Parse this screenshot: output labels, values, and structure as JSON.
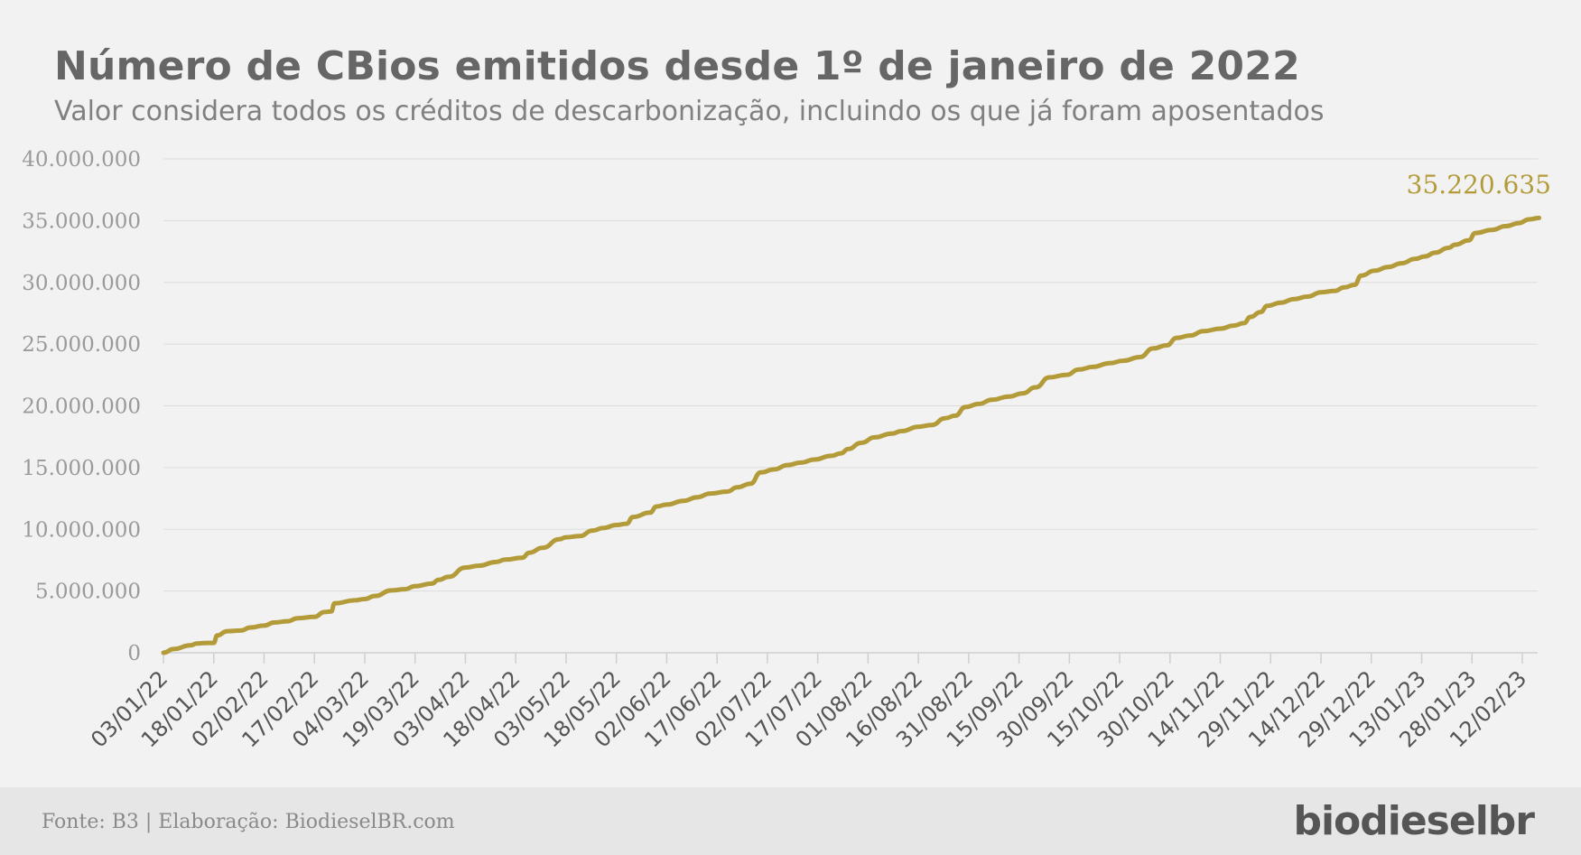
{
  "chart_data": {
    "type": "line",
    "title": "Número de CBios emitidos desde 1º de janeiro de 2022",
    "subtitle": "Valor considera todos os créditos de descarbonização, incluindo os que já foram aposentados",
    "xlabel": "",
    "ylabel": "",
    "ylim": [
      0,
      40000000
    ],
    "yticks": [
      0,
      5000000,
      10000000,
      15000000,
      20000000,
      25000000,
      30000000,
      35000000,
      40000000
    ],
    "ytick_labels": [
      "0",
      "5.000.000",
      "10.000.000",
      "15.000.000",
      "20.000.000",
      "25.000.000",
      "30.000.000",
      "35.000.000",
      "40.000.000"
    ],
    "xticks": [
      "2022-01-03",
      "2022-01-18",
      "2022-02-02",
      "2022-02-17",
      "2022-03-04",
      "2022-03-19",
      "2022-04-03",
      "2022-04-18",
      "2022-05-03",
      "2022-05-18",
      "2022-06-02",
      "2022-06-17",
      "2022-07-02",
      "2022-07-17",
      "2022-08-01",
      "2022-08-16",
      "2022-08-31",
      "2022-09-15",
      "2022-09-30",
      "2022-10-15",
      "2022-10-30",
      "2022-11-14",
      "2022-11-29",
      "2022-12-14",
      "2022-12-29",
      "2023-01-13",
      "2023-01-28",
      "2023-02-12"
    ],
    "xtick_labels": [
      "03/01/22",
      "18/01/22",
      "02/02/22",
      "17/02/22",
      "04/03/22",
      "19/03/22",
      "03/04/22",
      "18/04/22",
      "03/05/22",
      "18/05/22",
      "02/06/22",
      "17/06/22",
      "02/07/22",
      "17/07/22",
      "01/08/22",
      "16/08/22",
      "31/08/22",
      "15/09/22",
      "30/09/22",
      "15/10/22",
      "30/10/22",
      "14/11/22",
      "29/11/22",
      "14/12/22",
      "29/12/22",
      "13/01/23",
      "28/01/23",
      "12/02/23"
    ],
    "grid": true,
    "color": "#b39b3a",
    "series": [
      {
        "points": [
          [
            "2022-01-03",
            0
          ],
          [
            "2022-01-06",
            300000
          ],
          [
            "2022-01-11",
            600000
          ],
          [
            "2022-01-13",
            750000
          ],
          [
            "2022-01-16",
            800000
          ],
          [
            "2022-01-18",
            800000
          ],
          [
            "2022-01-19",
            1400000
          ],
          [
            "2022-01-22",
            1750000
          ],
          [
            "2022-01-26",
            1800000
          ],
          [
            "2022-01-29",
            2050000
          ],
          [
            "2022-02-02",
            2200000
          ],
          [
            "2022-02-05",
            2450000
          ],
          [
            "2022-02-09",
            2550000
          ],
          [
            "2022-02-12",
            2800000
          ],
          [
            "2022-02-17",
            2900000
          ],
          [
            "2022-02-20",
            3300000
          ],
          [
            "2022-02-22",
            3350000
          ],
          [
            "2022-02-23",
            4000000
          ],
          [
            "2022-03-01",
            4250000
          ],
          [
            "2022-03-04",
            4350000
          ],
          [
            "2022-03-07",
            4600000
          ],
          [
            "2022-03-12",
            5050000
          ],
          [
            "2022-03-16",
            5150000
          ],
          [
            "2022-03-19",
            5400000
          ],
          [
            "2022-03-24",
            5600000
          ],
          [
            "2022-03-26",
            5900000
          ],
          [
            "2022-03-29",
            6150000
          ],
          [
            "2022-04-03",
            6900000
          ],
          [
            "2022-04-07",
            7050000
          ],
          [
            "2022-04-12",
            7350000
          ],
          [
            "2022-04-15",
            7550000
          ],
          [
            "2022-04-20",
            7700000
          ],
          [
            "2022-04-22",
            8100000
          ],
          [
            "2022-04-26",
            8500000
          ],
          [
            "2022-05-01",
            9200000
          ],
          [
            "2022-05-03",
            9350000
          ],
          [
            "2022-05-07",
            9450000
          ],
          [
            "2022-05-11",
            9900000
          ],
          [
            "2022-05-14",
            10100000
          ],
          [
            "2022-05-18",
            10350000
          ],
          [
            "2022-05-21",
            10450000
          ],
          [
            "2022-05-23",
            11000000
          ],
          [
            "2022-05-28",
            11350000
          ],
          [
            "2022-05-30",
            11850000
          ],
          [
            "2022-06-02",
            12000000
          ],
          [
            "2022-06-07",
            12300000
          ],
          [
            "2022-06-11",
            12600000
          ],
          [
            "2022-06-15",
            12900000
          ],
          [
            "2022-06-20",
            13050000
          ],
          [
            "2022-06-23",
            13400000
          ],
          [
            "2022-06-27",
            13700000
          ],
          [
            "2022-06-30",
            14600000
          ],
          [
            "2022-07-04",
            14850000
          ],
          [
            "2022-07-08",
            15200000
          ],
          [
            "2022-07-12",
            15400000
          ],
          [
            "2022-07-16",
            15650000
          ],
          [
            "2022-07-21",
            15950000
          ],
          [
            "2022-07-24",
            16150000
          ],
          [
            "2022-07-26",
            16500000
          ],
          [
            "2022-07-30",
            17000000
          ],
          [
            "2022-08-03",
            17450000
          ],
          [
            "2022-08-08",
            17750000
          ],
          [
            "2022-08-11",
            17950000
          ],
          [
            "2022-08-16",
            18300000
          ],
          [
            "2022-08-20",
            18450000
          ],
          [
            "2022-08-24",
            19000000
          ],
          [
            "2022-08-27",
            19200000
          ],
          [
            "2022-08-30",
            19900000
          ],
          [
            "2022-09-03",
            20150000
          ],
          [
            "2022-09-07",
            20500000
          ],
          [
            "2022-09-12",
            20750000
          ],
          [
            "2022-09-16",
            21000000
          ],
          [
            "2022-09-20",
            21500000
          ],
          [
            "2022-09-24",
            22300000
          ],
          [
            "2022-09-29",
            22500000
          ],
          [
            "2022-10-03",
            22950000
          ],
          [
            "2022-10-07",
            23150000
          ],
          [
            "2022-10-12",
            23450000
          ],
          [
            "2022-10-16",
            23650000
          ],
          [
            "2022-10-21",
            23950000
          ],
          [
            "2022-10-25",
            24650000
          ],
          [
            "2022-10-29",
            24900000
          ],
          [
            "2022-11-01",
            25500000
          ],
          [
            "2022-11-05",
            25700000
          ],
          [
            "2022-11-09",
            26050000
          ],
          [
            "2022-11-14",
            26250000
          ],
          [
            "2022-11-18",
            26500000
          ],
          [
            "2022-11-21",
            26700000
          ],
          [
            "2022-11-23",
            27200000
          ],
          [
            "2022-11-26",
            27600000
          ],
          [
            "2022-11-28",
            28100000
          ],
          [
            "2022-12-02",
            28350000
          ],
          [
            "2022-12-06",
            28650000
          ],
          [
            "2022-12-10",
            28850000
          ],
          [
            "2022-12-14",
            29200000
          ],
          [
            "2022-12-18",
            29300000
          ],
          [
            "2022-12-21",
            29600000
          ],
          [
            "2022-12-24",
            29800000
          ],
          [
            "2022-12-26",
            30550000
          ],
          [
            "2022-12-30",
            30950000
          ],
          [
            "2023-01-03",
            31250000
          ],
          [
            "2023-01-07",
            31550000
          ],
          [
            "2023-01-11",
            31900000
          ],
          [
            "2023-01-14",
            32100000
          ],
          [
            "2023-01-17",
            32400000
          ],
          [
            "2023-01-21",
            32800000
          ],
          [
            "2023-01-23",
            33050000
          ],
          [
            "2023-01-27",
            33400000
          ],
          [
            "2023-01-29",
            34000000
          ],
          [
            "2023-02-03",
            34250000
          ],
          [
            "2023-02-07",
            34550000
          ],
          [
            "2023-02-11",
            34800000
          ],
          [
            "2023-02-14",
            35100000
          ],
          [
            "2023-02-17",
            35220635
          ]
        ]
      }
    ],
    "annotations": [
      {
        "label": "35.220.635"
      }
    ]
  },
  "footer": {
    "source": "Fonte: B3 | Elaboração: BiodieselBR.com",
    "logo": "biodieselbr"
  }
}
